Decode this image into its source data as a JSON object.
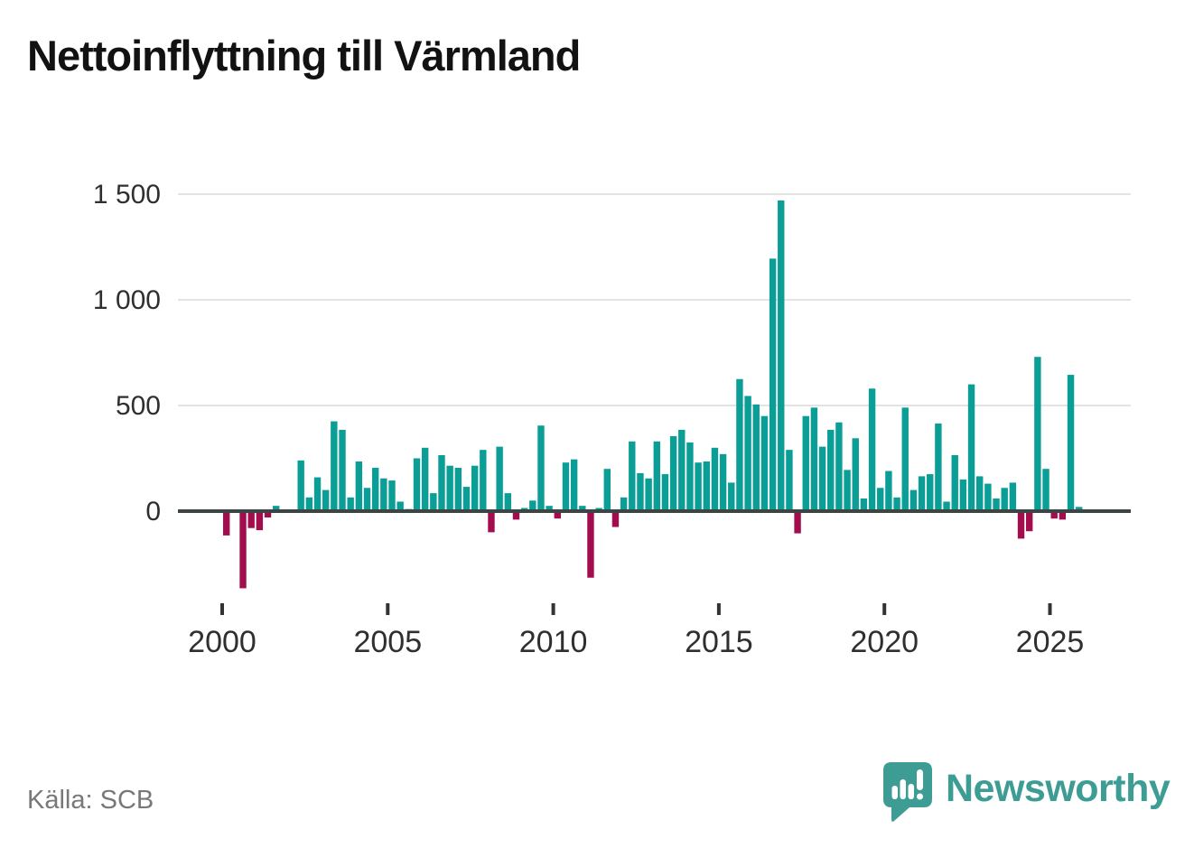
{
  "title": "Nettoinflyttning till Värmland",
  "source": "Källa: SCB",
  "branding": {
    "name": "Newsworthy"
  },
  "colors": {
    "positive": "#0a9e96",
    "negative": "#a30d4e",
    "brand": "#3d9c94",
    "grid": "#e3e3e3",
    "axis": "#3d4444",
    "tick": "#333333",
    "label": "#2f2f2f"
  },
  "chart_data": {
    "type": "bar",
    "title": "Nettoinflyttning till Värmland",
    "x_period": "quarterly",
    "start": "2000-Q1",
    "end": "2025-Q4",
    "values": [
      -115,
      0,
      -365,
      -80,
      -90,
      -30,
      25,
      0,
      0,
      240,
      65,
      160,
      100,
      425,
      385,
      65,
      235,
      110,
      205,
      155,
      145,
      45,
      10,
      250,
      300,
      85,
      265,
      215,
      205,
      115,
      215,
      290,
      -100,
      305,
      85,
      -40,
      15,
      50,
      405,
      25,
      -35,
      230,
      245,
      25,
      -315,
      15,
      200,
      -75,
      65,
      330,
      180,
      155,
      330,
      175,
      355,
      385,
      325,
      230,
      235,
      300,
      270,
      135,
      625,
      545,
      505,
      450,
      1195,
      1470,
      290,
      -105,
      450,
      490,
      305,
      385,
      420,
      195,
      345,
      60,
      580,
      110,
      190,
      65,
      490,
      100,
      165,
      175,
      415,
      45,
      265,
      150,
      600,
      165,
      130,
      60,
      110,
      135,
      -130,
      -95,
      730,
      200,
      -35,
      -40,
      645,
      20
    ],
    "y_ticks": [
      {
        "value": 0,
        "label": "0"
      },
      {
        "value": 500,
        "label": "500"
      },
      {
        "value": 1000,
        "label": "1 000"
      },
      {
        "value": 1500,
        "label": "1 500"
      }
    ],
    "x_ticks": [
      {
        "value": 2000,
        "label": "2000"
      },
      {
        "value": 2005,
        "label": "2005"
      },
      {
        "value": 2010,
        "label": "2010"
      },
      {
        "value": 2015,
        "label": "2015"
      },
      {
        "value": 2020,
        "label": "2020"
      },
      {
        "value": 2025,
        "label": "2025"
      }
    ],
    "ylim": [
      -400,
      1560
    ],
    "grid": true,
    "legend": false,
    "source": "SCB"
  }
}
